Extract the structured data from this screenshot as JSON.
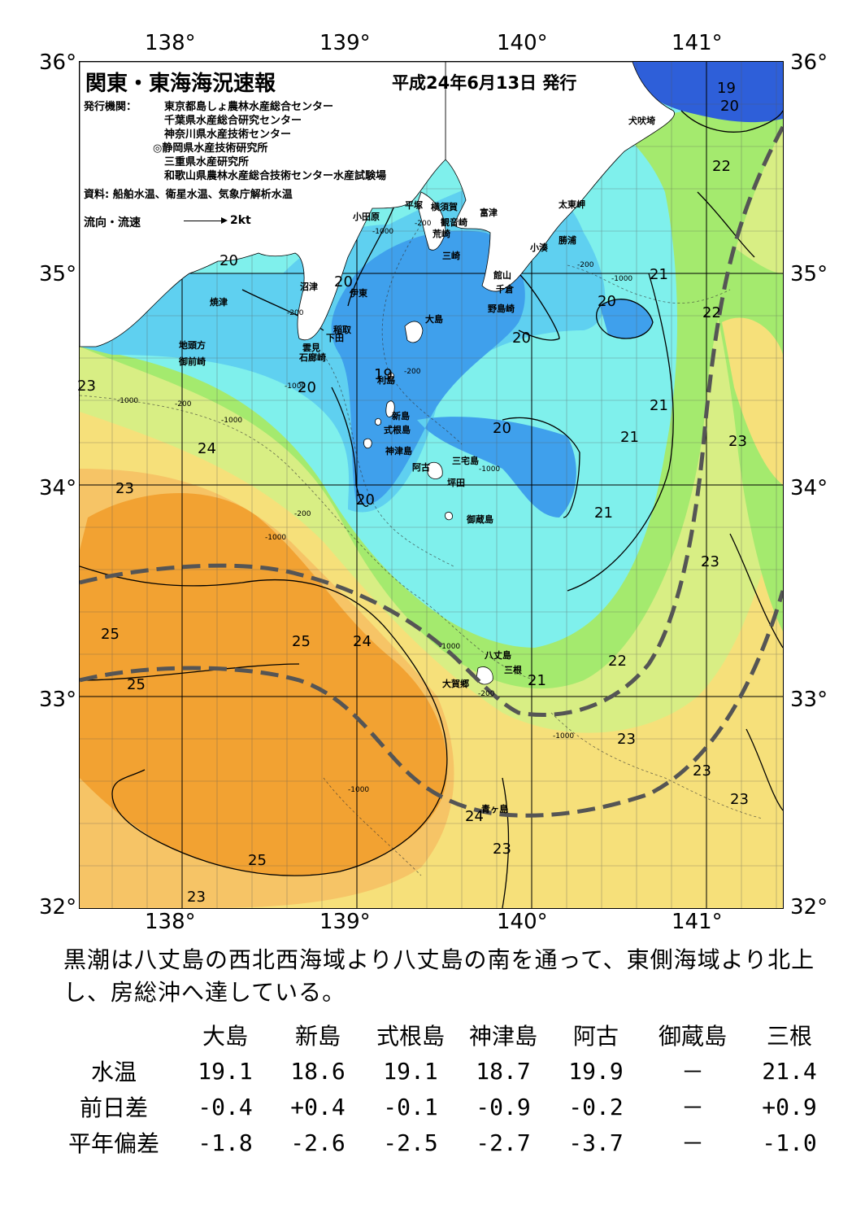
{
  "header": {
    "title": "関東・東海海況速報",
    "date": "平成24年6月13日 発行"
  },
  "issuers": {
    "label": "発行機関：",
    "list": [
      "東京都島しょ農林水産総合センター",
      "千葉県水産総合研究センター",
      "神奈川県水産技術センター",
      "◎静岡県水産技術研究所",
      "三重県水産研究所",
      "和歌山県農林水産総合技術センター水産試験場"
    ],
    "source": "資料: 船舶水温、衛星水温、気象庁解析水温"
  },
  "legend": {
    "flow_label": "流向・流速",
    "flow_unit": "2kt"
  },
  "axes": {
    "top_lon": [
      "138°",
      "139°",
      "140°",
      "141°"
    ],
    "bottom_lon": [
      "138°",
      "139°",
      "140°",
      "141°"
    ],
    "left_lat": [
      "36°",
      "35°",
      "34°",
      "33°",
      "32°"
    ],
    "right_lat": [
      "36°",
      "35°",
      "34°",
      "33°",
      "32°"
    ]
  },
  "places": {
    "inubosaki": "犬吠埼",
    "taitomisaki": "太東岬",
    "katsuura": "勝浦",
    "kominato": "小湊",
    "futtsu": "富津",
    "yokosuka": "横須賀",
    "hiratsuka": "平塚",
    "odawara": "小田原",
    "kannonzaki": "観音崎",
    "araizaki": "荒崎",
    "misaki": "三崎",
    "tateyama": "館山",
    "chikura": "千倉",
    "nojimazaki": "野島崎",
    "numazu": "沼津",
    "ito": "伊東",
    "yaizu": "焼津",
    "inatori": "稲取",
    "shimoda": "下田",
    "mikomoto": "雲見",
    "irozaki": "石廊崎",
    "jitogata": "地頭方",
    "omaezaki": "御前崎",
    "oshima": "大島",
    "toshima": "利島",
    "niijima": "新島",
    "shikinejima": "式根島",
    "kozushima": "神津島",
    "miyakejima": "三宅島",
    "ako": "阿古",
    "tsubota": "坪田",
    "mikurajima": "御蔵島",
    "hachijojima": "八丈島",
    "mitsune": "三根",
    "okago": "大賀郷",
    "aogashima": "青ヶ島"
  },
  "isotherms": [
    "19",
    "20",
    "20",
    "20",
    "20",
    "20",
    "20",
    "20",
    "20",
    "19",
    "21",
    "21",
    "21",
    "21",
    "21",
    "21",
    "22",
    "22",
    "22",
    "23",
    "23",
    "23",
    "23",
    "23",
    "23",
    "23",
    "23",
    "23",
    "24",
    "24",
    "24",
    "25",
    "25",
    "25",
    "25"
  ],
  "depth_labels": [
    "-200",
    "-200",
    "-200",
    "-200",
    "-200",
    "-200",
    "-200",
    "-1000",
    "-1000",
    "-1000",
    "-1000",
    "-1000",
    "-1000",
    "-1000",
    "-1000",
    "-1000",
    "-1000"
  ],
  "colors": {
    "deep_blue": "#2e5fd9",
    "blue": "#3fa0ec",
    "light_blue": "#5fd0f0",
    "cyan": "#7ff0ec",
    "green": "#a4ea6e",
    "yellow_green": "#d8ee84",
    "yellow": "#f6e07a",
    "light_orange": "#f6c466",
    "orange": "#f2a232",
    "kuroshio_axis": "#555555",
    "land": "#ffffff"
  },
  "summary": "黒潮は八丈島の西北西海域より八丈島の南を通って、東側海域より北上し、房総沖へ達している。",
  "table": {
    "columns": [
      "大島",
      "新島",
      "式根島",
      "神津島",
      "阿古",
      "御蔵島",
      "三根"
    ],
    "rows": [
      {
        "label": "水温",
        "values": [
          "19.1",
          "18.6",
          "19.1",
          "18.7",
          "19.9",
          "－",
          "21.4"
        ]
      },
      {
        "label": "前日差",
        "values": [
          "-0.4",
          "+0.4",
          "-0.1",
          "-0.9",
          "-0.2",
          "－",
          "+0.9"
        ]
      },
      {
        "label": "平年偏差",
        "values": [
          "-1.8",
          "-2.6",
          "-2.5",
          "-2.7",
          "-3.7",
          "－",
          "-1.0"
        ]
      }
    ]
  }
}
